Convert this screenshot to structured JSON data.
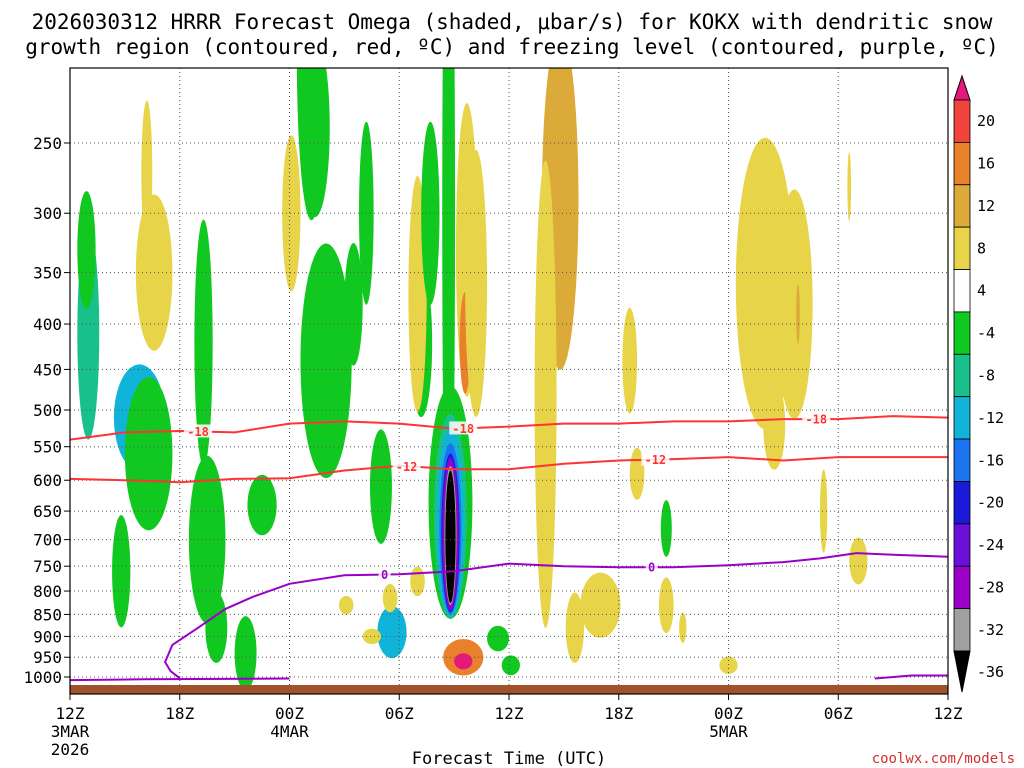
{
  "chart_data": {
    "type": "heatmap",
    "title_line1": "2026030312 HRRR Forecast Omega (shaded, μbar/s) for KOKX with dendritic snow",
    "title_line2": "growth region (contoured, red, ºC) and freezing level (contoured, purple, ºC)",
    "xlabel": "Forecast Time (UTC)",
    "credit": "coolwx.com/models",
    "x_ticks": [
      {
        "hour": 0,
        "label": "12Z",
        "sub1": "3MAR",
        "sub2": "2026"
      },
      {
        "hour": 6,
        "label": "18Z"
      },
      {
        "hour": 12,
        "label": "00Z",
        "sub1": "4MAR"
      },
      {
        "hour": 18,
        "label": "06Z"
      },
      {
        "hour": 24,
        "label": "12Z"
      },
      {
        "hour": 30,
        "label": "18Z"
      },
      {
        "hour": 36,
        "label": "00Z",
        "sub1": "5MAR"
      },
      {
        "hour": 42,
        "label": "06Z"
      },
      {
        "hour": 48,
        "label": "12Z"
      }
    ],
    "x_range_hours": [
      0,
      48
    ],
    "y_ticks_mb": [
      "250",
      "300",
      "350",
      "400",
      "450",
      "500",
      "550",
      "600",
      "650",
      "700",
      "750",
      "800",
      "850",
      "900",
      "950",
      "1000"
    ],
    "y_range_mb": [
      200,
      1013
    ],
    "colorbar": {
      "labels": [
        "20",
        "16",
        "12",
        "8",
        "4",
        "-4",
        "-8",
        "-12",
        "-16",
        "-20",
        "-24",
        "-28",
        "-32",
        "-36"
      ],
      "bins": [
        {
          "from": 20,
          "to": 24,
          "color": "#e8187a"
        },
        {
          "from": 16,
          "to": 20,
          "color": "#f0443c"
        },
        {
          "from": 12,
          "to": 16,
          "color": "#e8802c"
        },
        {
          "from": 8,
          "to": 12,
          "color": "#dcaa38"
        },
        {
          "from": 4,
          "to": 8,
          "color": "#e8d448"
        },
        {
          "from": -4,
          "to": 4,
          "color": "#ffffff"
        },
        {
          "from": -8,
          "to": -4,
          "color": "#10c820"
        },
        {
          "from": -12,
          "to": -8,
          "color": "#18c08c"
        },
        {
          "from": -16,
          "to": -12,
          "color": "#10b4d8"
        },
        {
          "from": -20,
          "to": -16,
          "color": "#1c74f0"
        },
        {
          "from": -24,
          "to": -20,
          "color": "#1a1ad8"
        },
        {
          "from": -28,
          "to": -24,
          "color": "#6a10d8"
        },
        {
          "from": -32,
          "to": -28,
          "color": "#9a00c8"
        },
        {
          "from": -36,
          "to": -32,
          "color": "#a0a0a0"
        },
        {
          "from": -40,
          "to": -36,
          "color": "#000000"
        }
      ]
    },
    "contours": {
      "dgz_warm": {
        "value": "-12",
        "color": "#ff3333",
        "points_hour_mb": [
          [
            0,
            598
          ],
          [
            3,
            600
          ],
          [
            6,
            603
          ],
          [
            9,
            598
          ],
          [
            12,
            597
          ],
          [
            15,
            585
          ],
          [
            18,
            578
          ],
          [
            21,
            583
          ],
          [
            24,
            583
          ],
          [
            27,
            575
          ],
          [
            30,
            570
          ],
          [
            33,
            568
          ],
          [
            36,
            565
          ],
          [
            39,
            570
          ],
          [
            42,
            565
          ],
          [
            45,
            565
          ],
          [
            48,
            565
          ]
        ],
        "label_positions_hour": [
          18.4,
          32
        ]
      },
      "dgz_cold": {
        "value": "-18",
        "color": "#ff3333",
        "points_hour_mb": [
          [
            0,
            540
          ],
          [
            3,
            530
          ],
          [
            6,
            528
          ],
          [
            9,
            530
          ],
          [
            12,
            518
          ],
          [
            15,
            515
          ],
          [
            18,
            518
          ],
          [
            21,
            525
          ],
          [
            24,
            522
          ],
          [
            27,
            518
          ],
          [
            30,
            518
          ],
          [
            33,
            515
          ],
          [
            36,
            515
          ],
          [
            39,
            512
          ],
          [
            42,
            512
          ],
          [
            45,
            508
          ],
          [
            48,
            510
          ]
        ],
        "label_positions_hour": [
          7,
          21.5,
          40.8
        ]
      },
      "freezing": {
        "value": "0",
        "color": "#9a00c8",
        "points_hour_mb": [
          [
            6,
            1003
          ],
          [
            5.5,
            985
          ],
          [
            5.2,
            962
          ],
          [
            5.6,
            920
          ],
          [
            7,
            880
          ],
          [
            8.5,
            838
          ],
          [
            10,
            812
          ],
          [
            12,
            785
          ],
          [
            15,
            768
          ],
          [
            18,
            766
          ],
          [
            21,
            760
          ],
          [
            24,
            745
          ],
          [
            27,
            750
          ],
          [
            30,
            752
          ],
          [
            33,
            752
          ],
          [
            36,
            748
          ],
          [
            39,
            742
          ],
          [
            41,
            735
          ],
          [
            43,
            725
          ],
          [
            45,
            728
          ],
          [
            48,
            732
          ]
        ],
        "label_positions_hour": [
          17.2,
          31.8
        ]
      }
    },
    "shaded_regions": [
      {
        "hour": 1.0,
        "mb": 410,
        "val": -10,
        "dh": 0.6,
        "dp": 110
      },
      {
        "hour": 0.9,
        "mb": 330,
        "val": -6,
        "dh": 0.5,
        "dp": 50
      },
      {
        "hour": 3.8,
        "mb": 510,
        "val": -13,
        "dh": 1.4,
        "dp": 70
      },
      {
        "hour": 4.3,
        "mb": 560,
        "val": -6,
        "dh": 1.3,
        "dp": 110
      },
      {
        "hour": 2.8,
        "mb": 760,
        "val": -6,
        "dh": 0.5,
        "dp": 110
      },
      {
        "hour": 4.6,
        "mb": 350,
        "val": 6,
        "dh": 1.0,
        "dp": 70
      },
      {
        "hour": 4.2,
        "mb": 270,
        "val": 5,
        "dh": 0.3,
        "dp": 50
      },
      {
        "hour": 7.3,
        "mb": 420,
        "val": -6,
        "dh": 0.5,
        "dp": 130
      },
      {
        "hour": 7.5,
        "mb": 700,
        "val": -6,
        "dh": 1.0,
        "dp": 150
      },
      {
        "hour": 8.0,
        "mb": 880,
        "val": -6,
        "dh": 0.6,
        "dp": 80
      },
      {
        "hour": 9.6,
        "mb": 940,
        "val": -6,
        "dh": 0.6,
        "dp": 90
      },
      {
        "hour": 10.5,
        "mb": 640,
        "val": -6,
        "dh": 0.8,
        "dp": 50
      },
      {
        "hour": 12.1,
        "mb": 300,
        "val": 6,
        "dh": 0.5,
        "dp": 60
      },
      {
        "hour": 13.2,
        "mb": 200,
        "val": -6,
        "dh": 0.8,
        "dp": 80
      },
      {
        "hour": 14.0,
        "mb": 440,
        "val": -6,
        "dh": 1.4,
        "dp": 130
      },
      {
        "hour": 13.4,
        "mb": 240,
        "val": -6,
        "dh": 0.8,
        "dp": 55
      },
      {
        "hour": 15.5,
        "mb": 380,
        "val": -6,
        "dh": 0.5,
        "dp": 60
      },
      {
        "hour": 16.2,
        "mb": 300,
        "val": -6,
        "dh": 0.4,
        "dp": 70
      },
      {
        "hour": 17.0,
        "mb": 610,
        "val": -6,
        "dh": 0.6,
        "dp": 90
      },
      {
        "hour": 17.6,
        "mb": 890,
        "val": -13,
        "dh": 0.8,
        "dp": 60
      },
      {
        "hour": 19.2,
        "mb": 420,
        "val": -6,
        "dh": 0.6,
        "dp": 80
      },
      {
        "hour": 19.0,
        "mb": 370,
        "val": 5,
        "dh": 0.5,
        "dp": 110
      },
      {
        "hour": 19.7,
        "mb": 300,
        "val": -6,
        "dh": 0.5,
        "dp": 70
      },
      {
        "hour": 17.5,
        "mb": 815,
        "val": 5,
        "dh": 0.4,
        "dp": 30
      },
      {
        "hour": 19.0,
        "mb": 780,
        "val": 5,
        "dh": 0.4,
        "dp": 30
      },
      {
        "hour": 15.1,
        "mb": 830,
        "val": 5,
        "dh": 0.4,
        "dp": 20
      },
      {
        "hour": 16.5,
        "mb": 900,
        "val": 5,
        "dh": 0.5,
        "dp": 18
      },
      {
        "hour": 21.7,
        "mb": 330,
        "val": 5,
        "dh": 0.6,
        "dp": 120
      },
      {
        "hour": 21.6,
        "mb": 420,
        "val": 12,
        "dh": 0.3,
        "dp": 55
      },
      {
        "hour": 22.2,
        "mb": 360,
        "val": 6,
        "dh": 0.6,
        "dp": 120
      },
      {
        "hour": 21.5,
        "mb": 950,
        "val": 14,
        "dh": 1.1,
        "dp": 45
      },
      {
        "hour": 21.5,
        "mb": 960,
        "val": 22,
        "dh": 0.5,
        "dp": 20
      },
      {
        "hour": 23.4,
        "mb": 905,
        "val": -6,
        "dh": 0.6,
        "dp": 30
      },
      {
        "hour": 24.1,
        "mb": 970,
        "val": -6,
        "dh": 0.5,
        "dp": 25
      },
      {
        "hour": 26.8,
        "mb": 290,
        "val": 8,
        "dh": 1.0,
        "dp": 120
      },
      {
        "hour": 26.0,
        "mb": 480,
        "val": 5,
        "dh": 0.6,
        "dp": 260
      },
      {
        "hour": 27.6,
        "mb": 880,
        "val": 5,
        "dh": 0.5,
        "dp": 80
      },
      {
        "hour": 29.0,
        "mb": 830,
        "val": 5,
        "dh": 1.1,
        "dp": 70
      },
      {
        "hour": 31.0,
        "mb": 590,
        "val": 5,
        "dh": 0.4,
        "dp": 40
      },
      {
        "hour": 30.6,
        "mb": 440,
        "val": 5,
        "dh": 0.4,
        "dp": 60
      },
      {
        "hour": 32.6,
        "mb": 680,
        "val": -6,
        "dh": 0.3,
        "dp": 50
      },
      {
        "hour": 32.6,
        "mb": 830,
        "val": 5,
        "dh": 0.4,
        "dp": 60
      },
      {
        "hour": 33.5,
        "mb": 880,
        "val": 5,
        "dh": 0.2,
        "dp": 35
      },
      {
        "hour": 36.0,
        "mb": 970,
        "val": 5,
        "dh": 0.5,
        "dp": 22
      },
      {
        "hour": 38.0,
        "mb": 360,
        "val": 5,
        "dh": 1.6,
        "dp": 130
      },
      {
        "hour": 39.6,
        "mb": 380,
        "val": 5,
        "dh": 1.0,
        "dp": 110
      },
      {
        "hour": 39.8,
        "mb": 390,
        "val": 10,
        "dh": 0.1,
        "dp": 30
      },
      {
        "hour": 38.5,
        "mb": 520,
        "val": 5,
        "dh": 0.6,
        "dp": 60
      },
      {
        "hour": 41.2,
        "mb": 650,
        "val": 5,
        "dh": 0.2,
        "dp": 70
      },
      {
        "hour": 42.6,
        "mb": 280,
        "val": 5,
        "dh": 0.1,
        "dp": 25
      },
      {
        "hour": 43.1,
        "mb": 740,
        "val": 5,
        "dh": 0.5,
        "dp": 45
      }
    ],
    "major_updraft": {
      "hour": 20.8,
      "rings": [
        {
          "val": -6,
          "dh": 1.2,
          "top": 470,
          "bot": 860
        },
        {
          "val": -10,
          "dh": 0.9,
          "top": 505,
          "bot": 860
        },
        {
          "val": -14,
          "dh": 0.75,
          "top": 525,
          "bot": 855
        },
        {
          "val": -18,
          "dh": 0.6,
          "top": 545,
          "bot": 850
        },
        {
          "val": -22,
          "dh": 0.5,
          "top": 560,
          "bot": 845
        },
        {
          "val": -26,
          "dh": 0.45,
          "top": 565,
          "bot": 842
        },
        {
          "val": -30,
          "dh": 0.4,
          "top": 570,
          "bot": 838
        },
        {
          "val": -34,
          "dh": 0.33,
          "top": 578,
          "bot": 830
        },
        {
          "val": -40,
          "dh": 0.28,
          "top": 585,
          "bot": 825
        }
      ],
      "cap_green": {
        "hour": 20.7,
        "mb": 300,
        "dh": 0.35,
        "dp": 230
      }
    }
  }
}
